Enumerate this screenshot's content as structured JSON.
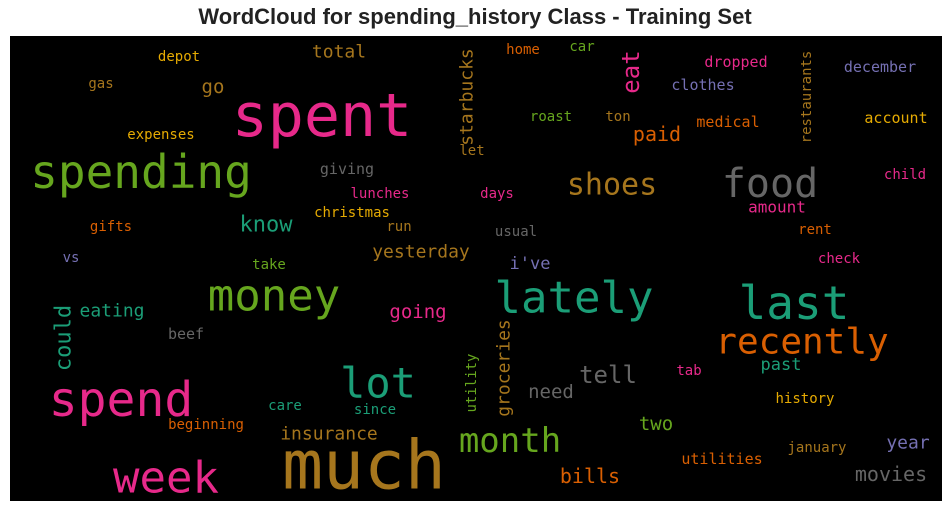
{
  "chart_data": {
    "type": "wordcloud",
    "title": "WordCloud for spending_history Class - Training Set",
    "background": "#000000",
    "words": [
      {
        "text": "much",
        "color": "#a6761d"
      },
      {
        "text": "spent",
        "color": "#e7298a"
      },
      {
        "text": "spend",
        "color": "#e7298a"
      },
      {
        "text": "spending",
        "color": "#66a61e"
      },
      {
        "text": "money",
        "color": "#66a61e"
      },
      {
        "text": "lately",
        "color": "#1b9e77"
      },
      {
        "text": "last",
        "color": "#1b9e77"
      },
      {
        "text": "week",
        "color": "#e7298a"
      },
      {
        "text": "recently",
        "color": "#d95f02"
      },
      {
        "text": "food",
        "color": "#666666"
      },
      {
        "text": "lot",
        "color": "#1b9e77"
      },
      {
        "text": "month",
        "color": "#66a61e"
      },
      {
        "text": "shoes",
        "color": "#a6761d"
      },
      {
        "text": "eat",
        "color": "#e7298a"
      },
      {
        "text": "starbucks",
        "color": "#a6761d"
      },
      {
        "text": "tell",
        "color": "#666666"
      },
      {
        "text": "know",
        "color": "#1b9e77"
      },
      {
        "text": "could",
        "color": "#1b9e77"
      },
      {
        "text": "insurance",
        "color": "#a6761d"
      },
      {
        "text": "groceries",
        "color": "#a6761d"
      },
      {
        "text": "bills",
        "color": "#d95f02"
      },
      {
        "text": "movies",
        "color": "#666666"
      },
      {
        "text": "total",
        "color": "#a6761d"
      },
      {
        "text": "paid",
        "color": "#d95f02"
      },
      {
        "text": "yesterday",
        "color": "#a6761d"
      },
      {
        "text": "going",
        "color": "#e7298a"
      },
      {
        "text": "eating",
        "color": "#1b9e77"
      },
      {
        "text": "need",
        "color": "#666666"
      },
      {
        "text": "two",
        "color": "#66a61e"
      },
      {
        "text": "past",
        "color": "#1b9e77"
      },
      {
        "text": "year",
        "color": "#7570b3"
      },
      {
        "text": "go",
        "color": "#a6761d"
      },
      {
        "text": "i've",
        "color": "#7570b3"
      },
      {
        "text": "utility",
        "color": "#66a61e"
      },
      {
        "text": "restaurants",
        "color": "#a6761d"
      },
      {
        "text": "amount",
        "color": "#e7298a"
      },
      {
        "text": "medical",
        "color": "#d95f02"
      },
      {
        "text": "clothes",
        "color": "#7570b3"
      },
      {
        "text": "dropped",
        "color": "#e7298a"
      },
      {
        "text": "december",
        "color": "#7570b3"
      },
      {
        "text": "account",
        "color": "#e6ab02"
      },
      {
        "text": "child",
        "color": "#e7298a"
      },
      {
        "text": "christmas",
        "color": "#e6ab02"
      },
      {
        "text": "lunches",
        "color": "#e7298a"
      },
      {
        "text": "giving",
        "color": "#666666"
      },
      {
        "text": "days",
        "color": "#e7298a"
      },
      {
        "text": "expenses",
        "color": "#e6ab02"
      },
      {
        "text": "depot",
        "color": "#e6ab02"
      },
      {
        "text": "gas",
        "color": "#a6761d"
      },
      {
        "text": "home",
        "color": "#d95f02"
      },
      {
        "text": "car",
        "color": "#66a61e"
      },
      {
        "text": "roast",
        "color": "#66a61e"
      },
      {
        "text": "ton",
        "color": "#a6761d"
      },
      {
        "text": "let",
        "color": "#a6761d"
      },
      {
        "text": "gifts",
        "color": "#d95f02"
      },
      {
        "text": "run",
        "color": "#a6761d"
      },
      {
        "text": "usual",
        "color": "#666666"
      },
      {
        "text": "rent",
        "color": "#d95f02"
      },
      {
        "text": "check",
        "color": "#e7298a"
      },
      {
        "text": "vs",
        "color": "#7570b3"
      },
      {
        "text": "take",
        "color": "#66a61e"
      },
      {
        "text": "beef",
        "color": "#666666"
      },
      {
        "text": "tab",
        "color": "#e7298a"
      },
      {
        "text": "history",
        "color": "#e6ab02"
      },
      {
        "text": "care",
        "color": "#1b9e77"
      },
      {
        "text": "since",
        "color": "#1b9e77"
      },
      {
        "text": "beginning",
        "color": "#d95f02"
      },
      {
        "text": "january",
        "color": "#a6761d"
      },
      {
        "text": "utilities",
        "color": "#d95f02"
      }
    ]
  }
}
